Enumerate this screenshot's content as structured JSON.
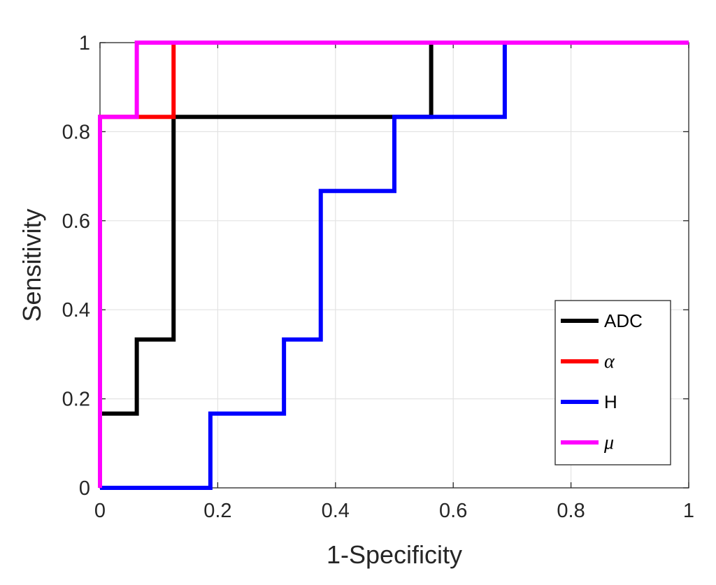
{
  "chart_data": {
    "type": "line",
    "title": "",
    "xlabel": "1-Specificity",
    "ylabel": "Sensitivity",
    "xlim": [
      0,
      1
    ],
    "ylim": [
      0,
      1
    ],
    "xticks": [
      0,
      0.2,
      0.4,
      0.6,
      0.8,
      1
    ],
    "yticks": [
      0,
      0.2,
      0.4,
      0.6,
      0.8,
      1
    ],
    "xtick_labels": [
      "0",
      "0.2",
      "0.4",
      "0.6",
      "0.8",
      "1"
    ],
    "ytick_labels": [
      "0",
      "0.2",
      "0.4",
      "0.6",
      "0.8",
      "1"
    ],
    "grid": true,
    "legend_position": "bottom-right",
    "series": [
      {
        "name": "ADC",
        "color": "#000000",
        "x": [
          0,
          0,
          0.0625,
          0.0625,
          0.125,
          0.125,
          0.5625,
          0.5625,
          1
        ],
        "y": [
          0,
          0.1667,
          0.1667,
          0.3333,
          0.3333,
          0.8333,
          0.8333,
          1,
          1
        ]
      },
      {
        "name": "α",
        "color": "#ff0000",
        "x": [
          0,
          0,
          0.125,
          0.125,
          1
        ],
        "y": [
          0,
          0.8333,
          0.8333,
          1,
          1
        ]
      },
      {
        "name": "H",
        "color": "#0000ff",
        "x": [
          0,
          0.1875,
          0.1875,
          0.3125,
          0.3125,
          0.375,
          0.375,
          0.5,
          0.5,
          0.6875,
          0.6875,
          1
        ],
        "y": [
          0,
          0,
          0.1667,
          0.1667,
          0.3333,
          0.3333,
          0.6667,
          0.6667,
          0.8333,
          0.8333,
          1,
          1
        ]
      },
      {
        "name": "μ",
        "color": "#ff00ff",
        "x": [
          0,
          0,
          0.0625,
          0.0625,
          1
        ],
        "y": [
          0,
          0.8333,
          0.8333,
          1,
          1
        ]
      }
    ]
  }
}
